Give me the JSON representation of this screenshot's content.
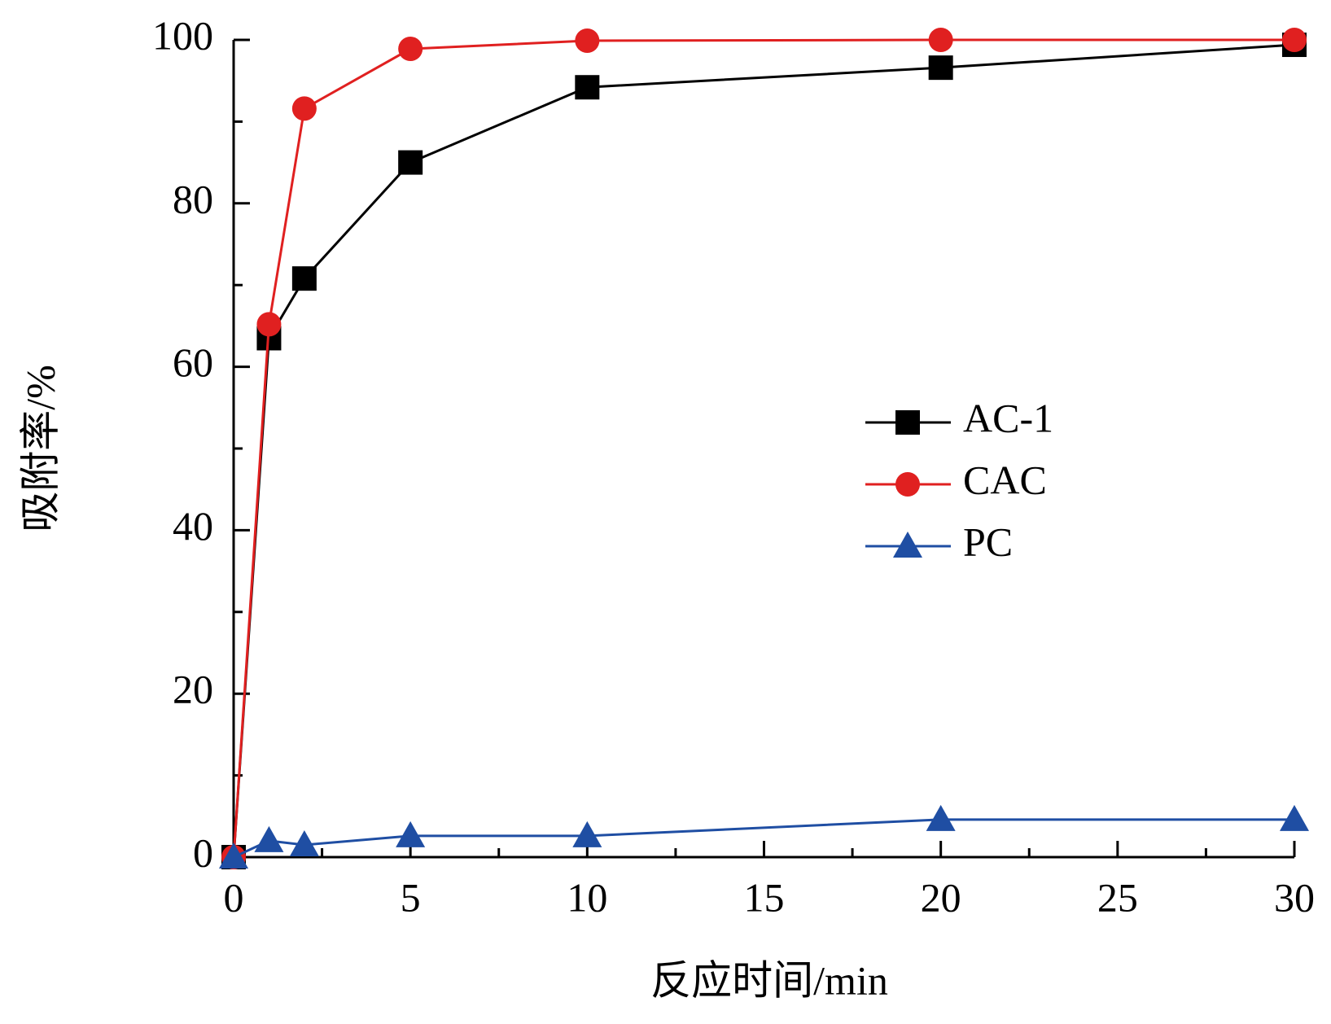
{
  "chart_data": {
    "type": "line",
    "x_label": "反应时间/min",
    "y_label": "吸附率/%",
    "x": [
      0,
      1,
      2,
      5,
      10,
      20,
      30
    ],
    "series": [
      {
        "name": "AC-1",
        "color": "#000000",
        "marker": "square",
        "values": [
          0,
          63.5,
          70.8,
          85,
          94.2,
          96.6,
          99.4
        ]
      },
      {
        "name": "CAC",
        "color": "#e02020",
        "marker": "circle",
        "values": [
          0,
          65.2,
          91.6,
          98.9,
          99.9,
          100,
          100
        ]
      },
      {
        "name": "PC",
        "color": "#1f4ea3",
        "marker": "triangle",
        "values": [
          0,
          2,
          1.5,
          2.6,
          2.6,
          4.6,
          4.6
        ]
      }
    ],
    "xlim": [
      0,
      30
    ],
    "ylim": [
      0,
      100
    ],
    "xticks": [
      0,
      5,
      10,
      15,
      20,
      25,
      30
    ],
    "yticks": [
      0,
      20,
      40,
      60,
      80,
      100
    ],
    "xminorticks": [
      2.5,
      7.5,
      12.5,
      17.5,
      22.5,
      27.5
    ],
    "yminorticks": [
      10,
      30,
      50,
      70,
      90
    ],
    "legend": "right"
  }
}
